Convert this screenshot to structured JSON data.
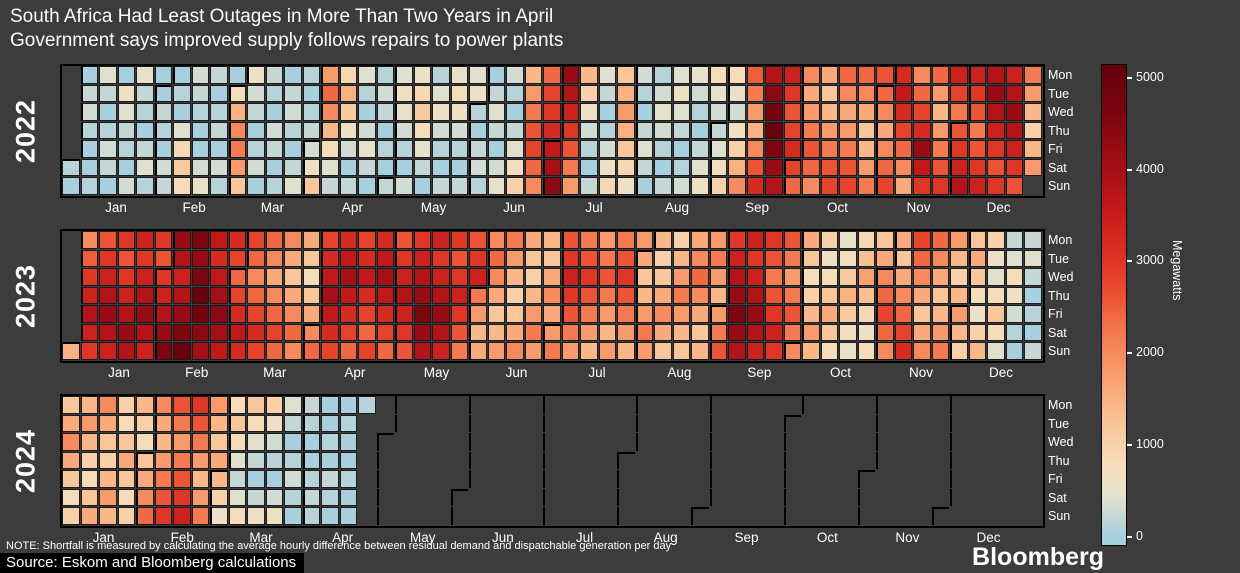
{
  "title": "South Africa Had Least Outages in More Than Two Years in April",
  "subtitle": "Government says improved supply follows repairs to power plants",
  "note": "NOTE: Shortfall is measured by calculating the average hourly difference between residual demand and dispatchable generation per day",
  "source": "Source: Eskom and Bloomberg calculations",
  "brand": "Bloomberg",
  "colorbar": {
    "label": "Megawatts",
    "ticks": [
      0,
      1000,
      2000,
      3000,
      4000,
      5000
    ],
    "min": 0,
    "max": 5000
  },
  "colors": {
    "background": "#3c3c3c",
    "cell_grid": "#1c1c1c",
    "month_boundary": "#000000",
    "text": "#ffffff",
    "scale_stops": [
      [
        0,
        "#a8cfdd"
      ],
      [
        450,
        "#e6e2cc"
      ],
      [
        800,
        "#f6ddba"
      ],
      [
        1300,
        "#fac091"
      ],
      [
        1800,
        "#f89a6a"
      ],
      [
        2300,
        "#f4724a"
      ],
      [
        2700,
        "#ea4a2e"
      ],
      [
        3100,
        "#dc2f22"
      ],
      [
        3600,
        "#c2181a"
      ],
      [
        4100,
        "#a00d15"
      ],
      [
        4600,
        "#7e0510"
      ],
      [
        5200,
        "#60000c"
      ]
    ]
  },
  "chart_data": {
    "type": "heatmap",
    "subtype": "calendar-heatmap",
    "unit": "Megawatts",
    "value_range": [
      0,
      5000
    ],
    "day_labels": [
      "Mon",
      "Tue",
      "Wed",
      "Thu",
      "Fri",
      "Sat",
      "Sun"
    ],
    "month_labels": [
      "Jan",
      "Feb",
      "Mar",
      "Apr",
      "May",
      "Jun",
      "Jul",
      "Aug",
      "Sep",
      "Oct",
      "Nov",
      "Dec"
    ],
    "years": [
      {
        "year": "2022",
        "values": [
          100,
          0,
          0,
          200,
          300,
          100,
          0,
          0,
          100,
          400,
          200,
          0,
          100,
          300,
          200,
          0,
          0,
          600,
          400,
          200,
          100,
          0,
          300,
          500,
          200,
          100,
          0,
          200,
          400,
          100,
          0,
          0,
          200,
          100,
          0,
          300,
          200,
          0,
          100,
          0,
          400,
          900,
          1100,
          800,
          300,
          200,
          100,
          0,
          0,
          300,
          500,
          200,
          0,
          100,
          200,
          0,
          300,
          100,
          0,
          800,
          1500,
          2000,
          2200,
          1800,
          1200,
          600,
          300,
          200,
          0,
          100,
          300,
          0,
          200,
          100,
          0,
          300,
          200,
          0,
          100,
          0,
          200,
          300,
          100,
          0,
          200,
          400,
          100,
          0,
          100,
          200,
          300,
          600,
          1200,
          1800,
          2400,
          2000,
          1400,
          800,
          400,
          200,
          900,
          1500,
          1100,
          600,
          300,
          0,
          200,
          400,
          100,
          0,
          300,
          500,
          200,
          0,
          100,
          300,
          200,
          0,
          100,
          0,
          200,
          400,
          700,
          500,
          300,
          100,
          0,
          300,
          600,
          900,
          1100,
          800,
          500,
          200,
          0,
          100,
          400,
          600,
          300,
          100,
          0,
          200,
          500,
          800,
          600,
          300,
          100,
          0,
          200,
          400,
          600,
          100,
          0,
          200,
          300,
          100,
          0,
          200,
          400,
          200,
          0,
          300,
          500,
          300,
          100,
          0,
          200,
          400,
          700,
          1000,
          1400,
          1800,
          2200,
          2600,
          2800,
          2400,
          2000,
          2400,
          2800,
          3000,
          3200,
          3600,
          4000,
          4400,
          4200,
          3800,
          3400,
          3000,
          2600,
          2200,
          1800,
          1400,
          1000,
          600,
          300,
          100,
          0,
          200,
          400,
          200,
          0,
          100,
          300,
          600,
          900,
          1200,
          1500,
          1800,
          1500,
          1200,
          900,
          600,
          300,
          100,
          0,
          200,
          400,
          200,
          0,
          100,
          300,
          500,
          300,
          100,
          0,
          200,
          400,
          600,
          400,
          200,
          0,
          100,
          300,
          500,
          300,
          100,
          0,
          200,
          400,
          600,
          800,
          500,
          300,
          200,
          400,
          700,
          1000,
          800,
          500,
          300,
          600,
          1000,
          1500,
          2000,
          2500,
          2200,
          1800,
          1500,
          2000,
          2600,
          3200,
          3800,
          4400,
          4800,
          5000,
          4600,
          4200,
          3800,
          3400,
          3000,
          2600,
          2800,
          3200,
          2800,
          2400,
          2000,
          1600,
          1800,
          2200,
          2600,
          2400,
          2000,
          1600,
          1200,
          1400,
          1800,
          2200,
          2600,
          2800,
          2400,
          2000,
          1600,
          1800,
          2200,
          2600,
          2800,
          2400,
          2000,
          1600,
          1200,
          1400,
          1800,
          2200,
          2600,
          2400,
          2000,
          1600,
          2000,
          2400,
          2800,
          3200,
          3600,
          3200,
          2800,
          2400,
          2000,
          1600,
          2000,
          2400,
          2800,
          3200,
          4200,
          3600,
          3000,
          2400,
          1800,
          1400,
          1800,
          2200,
          2600,
          3000,
          3400,
          2800,
          2200,
          2600,
          3000,
          3400,
          3800,
          3400,
          3000,
          2600,
          2200,
          2600,
          3000,
          3400,
          3800,
          4200,
          3800,
          3400,
          3000,
          2600,
          3000,
          3400,
          3800,
          4200,
          3800,
          3400,
          3000,
          2600,
          2200,
          1800,
          1400,
          1000,
          1400,
          1800
        ]
      },
      {
        "year": "2023",
        "values": [
          1500,
          2000,
          2500,
          3000,
          3400,
          3800,
          3400,
          3000,
          2600,
          3000,
          3400,
          3800,
          4200,
          3800,
          3400,
          3000,
          2600,
          3000,
          3400,
          3800,
          4200,
          3800,
          3400,
          3000,
          3400,
          3800,
          4200,
          3800,
          3400,
          3000,
          2600,
          3000,
          3400,
          3800,
          4200,
          4600,
          4200,
          3800,
          3400,
          3800,
          4200,
          4600,
          5000,
          4600,
          4200,
          4600,
          5000,
          4800,
          4400,
          4000,
          3600,
          3200,
          3600,
          4000,
          4400,
          4000,
          3600,
          3200,
          2800,
          2400,
          2800,
          3200,
          3600,
          3200,
          2800,
          2400,
          2000,
          2400,
          2800,
          3200,
          2800,
          2400,
          2000,
          1600,
          2000,
          2400,
          2800,
          2400,
          2000,
          1600,
          1200,
          1600,
          2000,
          2400,
          2000,
          1600,
          1200,
          800,
          1200,
          1600,
          2000,
          2400,
          2800,
          3200,
          3600,
          4000,
          3600,
          3200,
          2800,
          3200,
          3600,
          4000,
          3600,
          3200,
          2800,
          2400,
          2800,
          3200,
          3600,
          3200,
          2800,
          2400,
          2800,
          3200,
          3600,
          4000,
          3600,
          3200,
          2800,
          2400,
          2600,
          3000,
          3400,
          3800,
          3400,
          3000,
          2600,
          3000,
          3400,
          3800,
          4200,
          4600,
          4200,
          3800,
          3400,
          3000,
          3400,
          3800,
          4200,
          3800,
          3400,
          3000,
          2600,
          3000,
          3400,
          3000,
          2600,
          2200,
          2600,
          3000,
          3400,
          2200,
          1800,
          1400,
          1600,
          2000,
          2400,
          2000,
          1600,
          1200,
          1400,
          1800,
          2200,
          1800,
          1400,
          1000,
          1200,
          1600,
          2000,
          1600,
          1200,
          1000,
          1400,
          1800,
          2200,
          1800,
          1400,
          1200,
          1600,
          2000,
          1600,
          1800,
          2200,
          2600,
          3000,
          3400,
          3000,
          2600,
          2200,
          1800,
          2200,
          2600,
          3000,
          2600,
          2200,
          1800,
          1400,
          1800,
          2200,
          2600,
          2200,
          1800,
          1400,
          1800,
          2200,
          2600,
          3000,
          2600,
          2200,
          1800,
          1400,
          1800,
          1600,
          1200,
          1400,
          1800,
          2200,
          1800,
          1400,
          1000,
          1200,
          1600,
          2000,
          1600,
          1200,
          1000,
          1400,
          1800,
          2200,
          1800,
          1400,
          1200,
          1600,
          2000,
          2400,
          2000,
          1600,
          1200,
          1400,
          1800,
          2200,
          1800,
          1400,
          1800,
          2200,
          2600,
          3000,
          3400,
          3800,
          4200,
          4600,
          4200,
          3800,
          3400,
          3000,
          3400,
          3800,
          4200,
          3800,
          3400,
          3000,
          2600,
          2200,
          2600,
          3000,
          3400,
          3000,
          2600,
          2200,
          1800,
          2200,
          2600,
          2200,
          2000,
          1600,
          1200,
          800,
          1000,
          1400,
          1800,
          1400,
          1000,
          600,
          800,
          1200,
          1600,
          1200,
          800,
          500,
          700,
          1100,
          1500,
          1100,
          700,
          500,
          900,
          1300,
          1700,
          1300,
          900,
          600,
          800,
          1200,
          1600,
          2000,
          2400,
          2800,
          2400,
          2000,
          1600,
          1200,
          1600,
          2000,
          2400,
          2800,
          3200,
          2800,
          2400,
          2000,
          1600,
          1200,
          1600,
          2000,
          2400,
          2000,
          1600,
          1200,
          1400,
          1800,
          2200,
          1800,
          1400,
          1000,
          1400,
          1800,
          1400,
          1000,
          1200,
          1600,
          1200,
          800,
          600,
          1000,
          1400,
          1000,
          600,
          400,
          800,
          1200,
          800,
          400,
          200,
          400,
          800,
          600,
          300,
          100,
          0,
          200,
          400,
          200,
          0,
          100,
          0,
          200
        ]
      },
      {
        "year": "2024",
        "values": [
          1200,
          1600,
          2000,
          1600,
          1200,
          800,
          1000,
          1400,
          1800,
          1400,
          1000,
          800,
          1200,
          1600,
          2000,
          1600,
          1200,
          1000,
          1400,
          1800,
          1400,
          1000,
          800,
          1200,
          1600,
          1200,
          800,
          1000,
          1400,
          1000,
          800,
          1200,
          1600,
          2000,
          2400,
          2000,
          1600,
          1400,
          1800,
          2200,
          2600,
          3000,
          2600,
          2200,
          1800,
          2200,
          2600,
          3000,
          3400,
          3000,
          2600,
          2200,
          1800,
          1400,
          1800,
          2200,
          1800,
          1400,
          1200,
          1600,
          1400,
          1000,
          600,
          800,
          1200,
          800,
          400,
          200,
          400,
          800,
          1200,
          800,
          400,
          200,
          0,
          200,
          600,
          1000,
          600,
          300,
          100,
          0,
          300,
          600,
          400,
          200,
          0,
          100,
          300,
          100,
          0,
          200,
          100,
          0,
          0,
          100,
          200,
          100,
          0,
          0,
          100,
          0,
          200,
          100,
          0,
          0,
          100,
          0,
          0,
          100,
          0,
          0,
          100
        ]
      }
    ]
  }
}
